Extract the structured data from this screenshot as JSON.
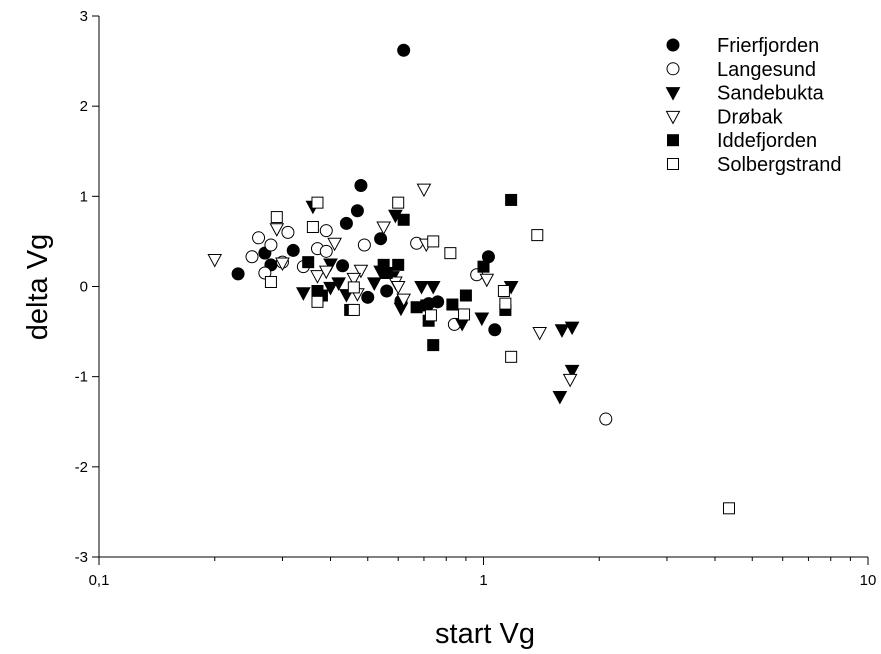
{
  "chart_data": {
    "type": "scatter",
    "title": "",
    "xlabel": "start Vg",
    "ylabel": "delta Vg",
    "xscale": "log",
    "xlim": [
      0.1,
      10
    ],
    "ylim": [
      -3,
      3
    ],
    "x_ticks": [
      0.1,
      1,
      10
    ],
    "x_tick_labels": [
      "0,1",
      "1",
      "10"
    ],
    "y_ticks": [
      -3,
      -2,
      -1,
      0,
      1,
      2,
      3
    ],
    "y_tick_labels": [
      "-3",
      "-2",
      "-1",
      "0",
      "1",
      "2",
      "3"
    ],
    "grid": false,
    "legend_position": "top-right",
    "series": [
      {
        "name": "Frierfjorden",
        "marker": "circle-filled",
        "points": [
          [
            0.62,
            2.62
          ],
          [
            0.48,
            1.12
          ],
          [
            0.47,
            0.84
          ],
          [
            0.44,
            0.7
          ],
          [
            0.54,
            0.53
          ],
          [
            0.32,
            0.4
          ],
          [
            0.27,
            0.37
          ],
          [
            0.28,
            0.24
          ],
          [
            0.43,
            0.23
          ],
          [
            0.23,
            0.14
          ],
          [
            0.56,
            -0.05
          ],
          [
            0.5,
            -0.12
          ],
          [
            0.61,
            -0.16
          ],
          [
            0.72,
            -0.19
          ],
          [
            0.76,
            -0.17
          ],
          [
            1.03,
            0.33
          ],
          [
            1.07,
            -0.48
          ]
        ]
      },
      {
        "name": "Langesund",
        "marker": "circle-open",
        "points": [
          [
            0.26,
            0.54
          ],
          [
            0.28,
            0.46
          ],
          [
            0.31,
            0.6
          ],
          [
            0.39,
            0.62
          ],
          [
            0.37,
            0.42
          ],
          [
            0.39,
            0.39
          ],
          [
            0.49,
            0.46
          ],
          [
            0.67,
            0.48
          ],
          [
            0.25,
            0.33
          ],
          [
            0.3,
            0.27
          ],
          [
            0.34,
            0.22
          ],
          [
            0.27,
            0.15
          ],
          [
            0.96,
            0.13
          ],
          [
            0.84,
            -0.42
          ],
          [
            2.08,
            -1.47
          ]
        ]
      },
      {
        "name": "Sandebukta",
        "marker": "triangle-down-filled",
        "points": [
          [
            0.36,
            0.89
          ],
          [
            0.59,
            0.79
          ],
          [
            0.4,
            0.25
          ],
          [
            0.54,
            0.17
          ],
          [
            0.58,
            0.11
          ],
          [
            0.52,
            0.04
          ],
          [
            0.42,
            0.04
          ],
          [
            0.4,
            -0.01
          ],
          [
            0.34,
            -0.07
          ],
          [
            0.44,
            -0.09
          ],
          [
            0.61,
            -0.24
          ],
          [
            0.69,
            0.0
          ],
          [
            0.74,
            0.0
          ],
          [
            0.88,
            -0.41
          ],
          [
            0.99,
            -0.35
          ],
          [
            1.18,
            0.0
          ],
          [
            1.6,
            -0.48
          ],
          [
            1.7,
            -0.45
          ],
          [
            1.58,
            -1.22
          ],
          [
            1.7,
            -0.93
          ]
        ]
      },
      {
        "name": "Drøbak",
        "marker": "triangle-down-open",
        "points": [
          [
            0.2,
            0.3
          ],
          [
            0.29,
            0.64
          ],
          [
            0.3,
            0.26
          ],
          [
            0.41,
            0.48
          ],
          [
            0.55,
            0.66
          ],
          [
            0.7,
            1.08
          ],
          [
            0.71,
            0.47
          ],
          [
            0.37,
            0.12
          ],
          [
            0.39,
            0.17
          ],
          [
            0.48,
            0.18
          ],
          [
            0.46,
            0.09
          ],
          [
            0.47,
            -0.08
          ],
          [
            0.59,
            0.05
          ],
          [
            0.6,
            0.0
          ],
          [
            0.62,
            -0.14
          ],
          [
            1.02,
            0.08
          ],
          [
            1.4,
            -0.51
          ],
          [
            1.68,
            -1.03
          ]
        ]
      },
      {
        "name": "Iddefjorden",
        "marker": "square-filled",
        "points": [
          [
            0.62,
            0.74
          ],
          [
            0.55,
            0.24
          ],
          [
            0.6,
            0.24
          ],
          [
            0.35,
            0.27
          ],
          [
            0.37,
            -0.05
          ],
          [
            0.38,
            -0.1
          ],
          [
            0.56,
            0.15
          ],
          [
            0.45,
            -0.26
          ],
          [
            0.67,
            -0.23
          ],
          [
            0.71,
            -0.21
          ],
          [
            0.72,
            -0.38
          ],
          [
            0.83,
            -0.2
          ],
          [
            0.9,
            -0.1
          ],
          [
            0.74,
            -0.65
          ],
          [
            1.0,
            0.22
          ],
          [
            1.14,
            -0.26
          ],
          [
            1.18,
            0.96
          ]
        ]
      },
      {
        "name": "Solbergstrand",
        "marker": "square-open",
        "points": [
          [
            0.29,
            0.77
          ],
          [
            0.37,
            0.93
          ],
          [
            0.6,
            0.93
          ],
          [
            0.36,
            0.66
          ],
          [
            0.74,
            0.5
          ],
          [
            0.82,
            0.37
          ],
          [
            0.28,
            0.05
          ],
          [
            0.37,
            -0.17
          ],
          [
            0.46,
            -0.01
          ],
          [
            0.46,
            -0.26
          ],
          [
            0.73,
            -0.32
          ],
          [
            0.89,
            -0.31
          ],
          [
            1.13,
            -0.05
          ],
          [
            1.14,
            -0.19
          ],
          [
            1.18,
            -0.78
          ],
          [
            1.38,
            0.57
          ],
          [
            4.35,
            -2.46
          ]
        ]
      }
    ]
  }
}
